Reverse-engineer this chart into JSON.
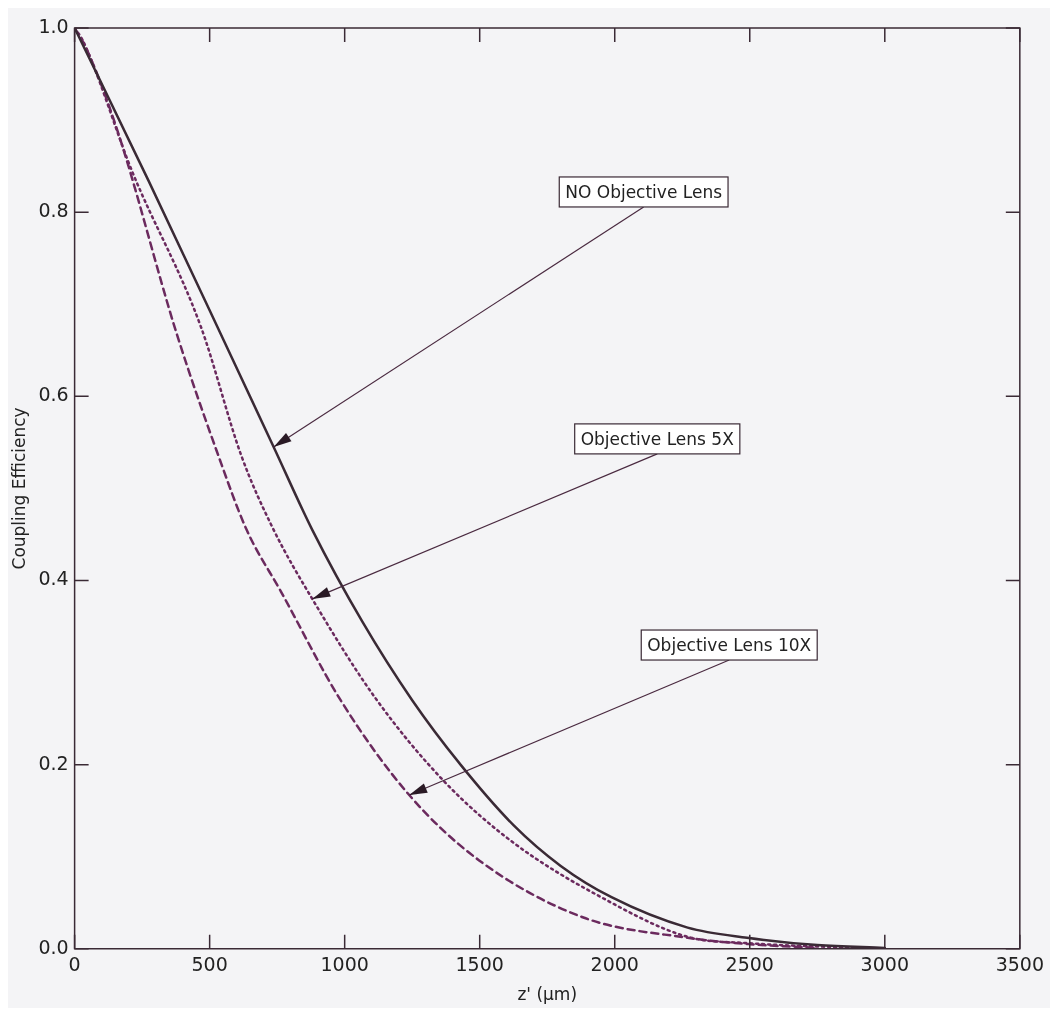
{
  "chart_data": {
    "type": "line",
    "xlabel": "z' (μm)",
    "ylabel": "Coupling Efficiency",
    "xlim": [
      0,
      3500
    ],
    "xticks": [
      0,
      500,
      1000,
      1500,
      2000,
      2500,
      3000,
      3500
    ],
    "ylim": [
      0,
      1
    ],
    "yticks": [
      {
        "value": 0,
        "label": "0.0"
      },
      {
        "value": 0.2,
        "label": "0.2"
      },
      {
        "value": 0.4,
        "label": "0.4"
      },
      {
        "value": 0.6,
        "label": "0.6"
      },
      {
        "value": 0.8,
        "label": "0.8"
      },
      {
        "value": 1,
        "label": "1.0"
      }
    ],
    "grid": false,
    "legend": false,
    "marker": "none",
    "series": [
      {
        "color": "#3a2a35",
        "line_style": "solid",
        "x": [
          0,
          274,
          571,
          737,
          880,
          1066,
          1250,
          1429,
          1626,
          1800,
          1988,
          2270,
          2490,
          2750,
          3000
        ],
        "values": [
          1.0,
          0.834,
          0.649,
          0.545,
          0.455,
          0.355,
          0.27,
          0.2,
          0.134,
          0.09,
          0.056,
          0.023,
          0.012,
          0.004,
          0.001
        ]
      },
      {
        "color": "#6b2a5e",
        "line_style": "dotted",
        "x": [
          0,
          31,
          212,
          467,
          618,
          737,
          880,
          1112,
          1371,
          1626,
          1950,
          2270,
          2500,
          2900
        ],
        "values": [
          1.0,
          0.986,
          0.845,
          0.676,
          0.535,
          0.455,
          0.38,
          0.273,
          0.181,
          0.115,
          0.056,
          0.013,
          0.006,
          0.001
        ]
      },
      {
        "color": "#6b2a5e",
        "line_style": "dashed",
        "x": [
          0,
          43,
          158,
          378,
          533,
          637,
          764,
          985,
          1239,
          1498,
          1884,
          2270,
          2500,
          2750
        ],
        "values": [
          1.0,
          0.978,
          0.889,
          0.668,
          0.535,
          0.455,
          0.388,
          0.27,
          0.167,
          0.096,
          0.034,
          0.012,
          0.005,
          0.001
        ]
      }
    ],
    "annotations": [
      {
        "text": "NO Objective Lens",
        "x": 737,
        "y": 0.545
      },
      {
        "text": "Objective Lens 5X",
        "x": 880,
        "y": 0.38
      },
      {
        "text": "Objective Lens 10X",
        "x": 1239,
        "y": 0.167
      }
    ]
  }
}
